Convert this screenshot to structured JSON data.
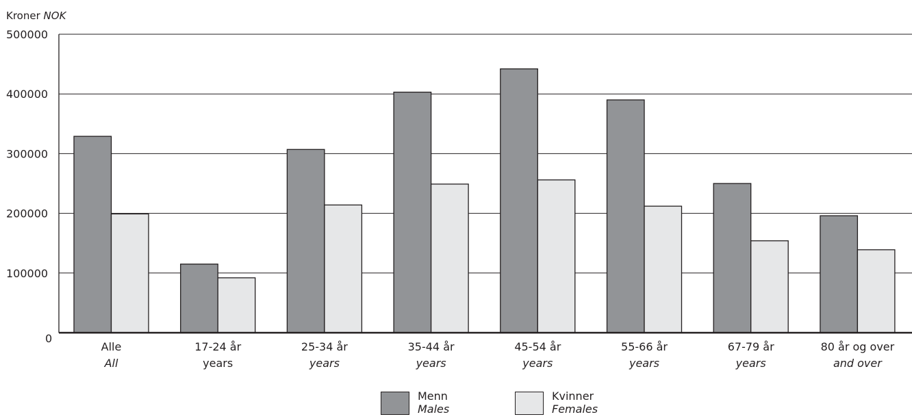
{
  "chart_data": {
    "type": "bar",
    "ylabel": "Kroner",
    "ylabel_italic": "NOK",
    "ylim": [
      0,
      500000
    ],
    "yticks": [
      0,
      100000,
      200000,
      300000,
      400000,
      500000
    ],
    "ytick_labels": [
      "0",
      "100000",
      "200000",
      "300000",
      "400000",
      "500000"
    ],
    "grid": true,
    "categories": [
      {
        "top": "Alle",
        "bottom": "All",
        "bottom_italic": true
      },
      {
        "top": "17-24 år",
        "bottom": "years",
        "bottom_italic": false
      },
      {
        "top": "25-34 år",
        "bottom": "years",
        "bottom_italic": true
      },
      {
        "top": "35-44 år",
        "bottom": "years",
        "bottom_italic": true
      },
      {
        "top": "45-54 år",
        "bottom": "years",
        "bottom_italic": true
      },
      {
        "top": "55-66 år",
        "bottom": "years",
        "bottom_italic": true
      },
      {
        "top": "67-79 år",
        "bottom": "years",
        "bottom_italic": true
      },
      {
        "top": "80 år og over",
        "bottom": "and over",
        "bottom_italic": true
      }
    ],
    "series": [
      {
        "name": "Menn",
        "name_italic": "Males",
        "color": "#929497",
        "values": [
          329000,
          115000,
          307000,
          403000,
          442000,
          390000,
          250000,
          196000
        ]
      },
      {
        "name": "Kvinner",
        "name_italic": "Females",
        "color": "#e6e7e8",
        "values": [
          199000,
          92000,
          214000,
          249000,
          256000,
          212000,
          154000,
          139000
        ]
      }
    ],
    "legend_placement": "bottom-center"
  }
}
